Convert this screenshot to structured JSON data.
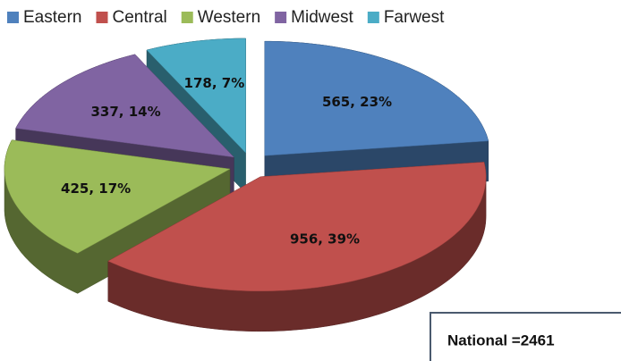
{
  "chart_data": {
    "type": "pie3d",
    "categories": [
      "Eastern",
      "Central",
      "Western",
      "Midwest",
      "Farwest"
    ],
    "values": [
      565,
      956,
      425,
      337,
      178
    ],
    "value_labels": [
      "565, 23%",
      "956, 39%",
      "425, 17%",
      "337, 14%",
      "178, 7%"
    ],
    "colors": [
      "#4f81bd",
      "#c0504d",
      "#9bbb59",
      "#8064a2",
      "#4bacc6"
    ],
    "legend": "top",
    "annotation": "National =2461"
  }
}
